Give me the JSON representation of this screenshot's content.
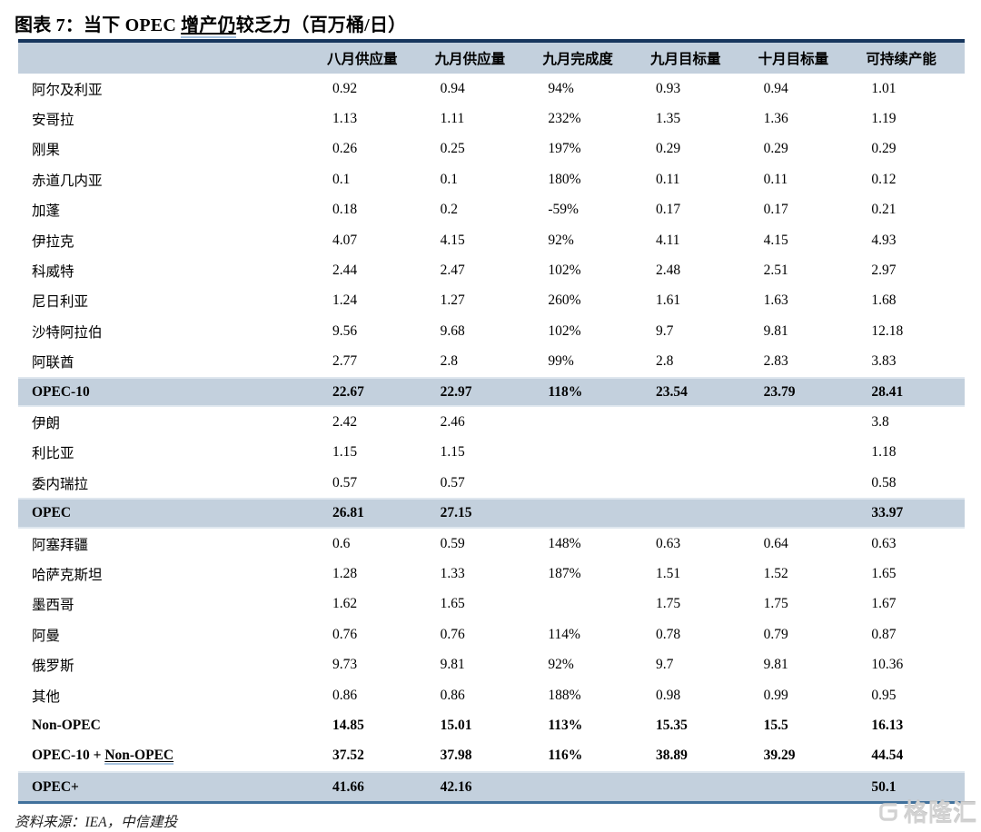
{
  "title": {
    "prefix": "图表  7：当下 OPEC ",
    "underlined": "增产仍",
    "suffix": "较乏力（百万桶/日）"
  },
  "colors": {
    "table_top_border": "#17365d",
    "band_background": "#c3d0dd",
    "table_bottom_border": "#41719c",
    "underline_blue": "#a8c4e0",
    "watermark_gray": "#d2d2d2"
  },
  "chart_data": {
    "type": "table",
    "title": "图表 7：当下 OPEC 增产仍较乏力（百万桶/日）",
    "columns": [
      "八月供应量",
      "九月供应量",
      "九月完成度",
      "九月目标量",
      "十月目标量",
      "可持续产能"
    ],
    "rows": [
      {
        "label": "阿尔及利亚",
        "bold": false,
        "highlight": false,
        "values": [
          "0.92",
          "0.94",
          "94%",
          "0.93",
          "0.94",
          "1.01"
        ]
      },
      {
        "label": "安哥拉",
        "bold": false,
        "highlight": false,
        "values": [
          "1.13",
          "1.11",
          "232%",
          "1.35",
          "1.36",
          "1.19"
        ]
      },
      {
        "label": "刚果",
        "bold": false,
        "highlight": false,
        "values": [
          "0.26",
          "0.25",
          "197%",
          "0.29",
          "0.29",
          "0.29"
        ]
      },
      {
        "label": "赤道几内亚",
        "bold": false,
        "highlight": false,
        "values": [
          "0.1",
          "0.1",
          "180%",
          "0.11",
          "0.11",
          "0.12"
        ]
      },
      {
        "label": "加蓬",
        "bold": false,
        "highlight": false,
        "values": [
          "0.18",
          "0.2",
          "-59%",
          "0.17",
          "0.17",
          "0.21"
        ]
      },
      {
        "label": "伊拉克",
        "bold": false,
        "highlight": false,
        "values": [
          "4.07",
          "4.15",
          "92%",
          "4.11",
          "4.15",
          "4.93"
        ]
      },
      {
        "label": "科威特",
        "bold": false,
        "highlight": false,
        "values": [
          "2.44",
          "2.47",
          "102%",
          "2.48",
          "2.51",
          "2.97"
        ]
      },
      {
        "label": "尼日利亚",
        "bold": false,
        "highlight": false,
        "values": [
          "1.24",
          "1.27",
          "260%",
          "1.61",
          "1.63",
          "1.68"
        ]
      },
      {
        "label": "沙特阿拉伯",
        "bold": false,
        "highlight": false,
        "values": [
          "9.56",
          "9.68",
          "102%",
          "9.7",
          "9.81",
          "12.18"
        ]
      },
      {
        "label": "阿联酋",
        "bold": false,
        "highlight": false,
        "values": [
          "2.77",
          "2.8",
          "99%",
          "2.8",
          "2.83",
          "3.83"
        ]
      },
      {
        "label": "OPEC-10",
        "bold": true,
        "highlight": true,
        "values": [
          "22.67",
          "22.97",
          "118%",
          "23.54",
          "23.79",
          "28.41"
        ]
      },
      {
        "label": "伊朗",
        "bold": false,
        "highlight": false,
        "values": [
          "2.42",
          "2.46",
          "",
          "",
          "",
          "3.8"
        ]
      },
      {
        "label": "利比亚",
        "bold": false,
        "highlight": false,
        "values": [
          "1.15",
          "1.15",
          "",
          "",
          "",
          "1.18"
        ]
      },
      {
        "label": "委内瑞拉",
        "bold": false,
        "highlight": false,
        "values": [
          "0.57",
          "0.57",
          "",
          "",
          "",
          "0.58"
        ]
      },
      {
        "label": "OPEC",
        "bold": true,
        "highlight": true,
        "values": [
          "26.81",
          "27.15",
          "",
          "",
          "",
          "33.97"
        ]
      },
      {
        "label": "阿塞拜疆",
        "bold": false,
        "highlight": false,
        "values": [
          "0.6",
          "0.59",
          "148%",
          "0.63",
          "0.64",
          "0.63"
        ]
      },
      {
        "label": "哈萨克斯坦",
        "bold": false,
        "highlight": false,
        "values": [
          "1.28",
          "1.33",
          "187%",
          "1.51",
          "1.52",
          "1.65"
        ]
      },
      {
        "label": "墨西哥",
        "bold": false,
        "highlight": false,
        "values": [
          "1.62",
          "1.65",
          "",
          "1.75",
          "1.75",
          "1.67"
        ]
      },
      {
        "label": "阿曼",
        "bold": false,
        "highlight": false,
        "values": [
          "0.76",
          "0.76",
          "114%",
          "0.78",
          "0.79",
          "0.87"
        ]
      },
      {
        "label": "俄罗斯",
        "bold": false,
        "highlight": false,
        "values": [
          "9.73",
          "9.81",
          "92%",
          "9.7",
          "9.81",
          "10.36"
        ]
      },
      {
        "label": "其他",
        "bold": false,
        "highlight": false,
        "values": [
          "0.86",
          "0.86",
          "188%",
          "0.98",
          "0.99",
          "0.95"
        ]
      },
      {
        "label": "Non-OPEC",
        "bold": true,
        "highlight": false,
        "values": [
          "14.85",
          "15.01",
          "113%",
          "15.35",
          "15.5",
          "16.13"
        ]
      },
      {
        "label": "OPEC-10 + Non-OPEC",
        "label_prefix": "OPEC-10 + ",
        "label_underlined": "Non-OPEC",
        "bold": true,
        "highlight": false,
        "values": [
          "37.52",
          "37.98",
          "116%",
          "38.89",
          "39.29",
          "44.54"
        ]
      },
      {
        "label": "OPEC+",
        "bold": true,
        "highlight": true,
        "values": [
          "41.66",
          "42.16",
          "",
          "",
          "",
          "50.1"
        ]
      }
    ]
  },
  "footer": {
    "source": "资料来源：IEA，中信建投"
  },
  "watermark": {
    "text": "格隆汇"
  }
}
